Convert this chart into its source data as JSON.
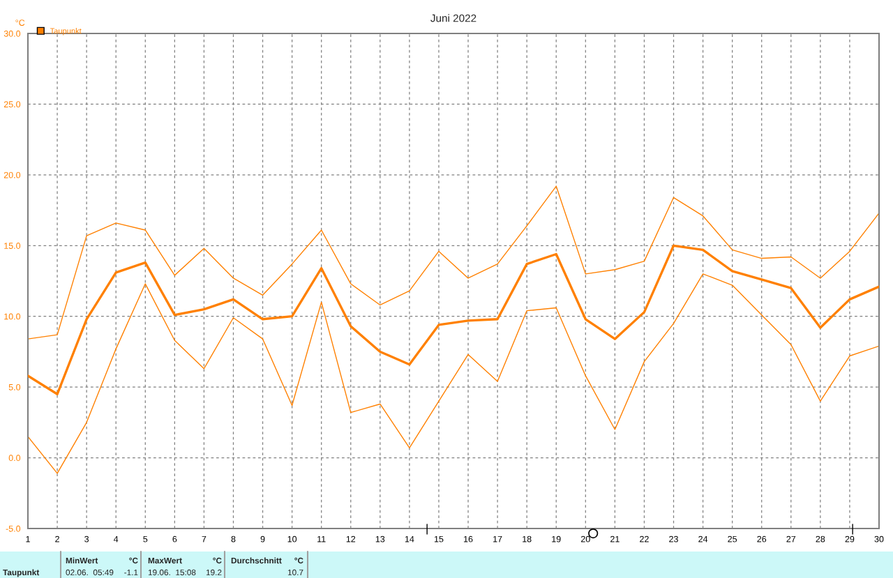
{
  "chart_data": {
    "type": "line",
    "title": "Juni 2022",
    "ylabel": "°C",
    "x": [
      1,
      2,
      3,
      4,
      5,
      6,
      7,
      8,
      9,
      10,
      11,
      12,
      13,
      14,
      15,
      16,
      17,
      18,
      19,
      20,
      21,
      22,
      23,
      24,
      25,
      26,
      27,
      28,
      29,
      30
    ],
    "series": [
      {
        "name": "Taupunkt",
        "color": "#ff8000",
        "values": [
          5.8,
          4.5,
          9.8,
          13.1,
          13.8,
          10.1,
          10.5,
          11.2,
          9.8,
          10.0,
          13.4,
          9.3,
          7.5,
          6.6,
          9.4,
          9.7,
          9.8,
          13.7,
          14.4,
          9.8,
          8.4,
          10.3,
          15.0,
          14.7,
          13.2,
          12.6,
          12.0,
          9.2,
          11.2,
          12.1
        ]
      },
      {
        "color": "#ff8000",
        "values": [
          8.4,
          8.7,
          15.7,
          16.6,
          16.1,
          12.9,
          14.8,
          12.7,
          11.5,
          13.7,
          16.1,
          12.3,
          10.8,
          11.8,
          14.6,
          12.7,
          13.7,
          16.4,
          19.2,
          13.0,
          13.3,
          13.9,
          18.4,
          17.1,
          14.7,
          14.1,
          14.2,
          12.7,
          14.6,
          17.3
        ]
      },
      {
        "color": "#ff8000",
        "values": [
          1.5,
          -1.1,
          2.5,
          7.7,
          12.3,
          8.3,
          6.3,
          9.9,
          8.4,
          3.7,
          11.0,
          3.2,
          3.8,
          0.7,
          4.0,
          7.3,
          5.4,
          10.4,
          10.6,
          5.8,
          2.0,
          6.8,
          9.5,
          13.0,
          12.2,
          10.1,
          8.0,
          4.0,
          7.2,
          7.9
        ]
      }
    ],
    "xlim": [
      1,
      30
    ],
    "xticks": [
      1,
      2,
      3,
      4,
      5,
      6,
      7,
      8,
      9,
      10,
      11,
      12,
      13,
      14,
      15,
      16,
      17,
      18,
      19,
      20,
      21,
      22,
      23,
      24,
      25,
      26,
      27,
      28,
      29,
      30
    ],
    "ylim": [
      -5,
      30
    ],
    "yticks": [
      {
        "value": -5,
        "label": "-5.0"
      },
      {
        "value": 0,
        "label": "0.0"
      },
      {
        "value": 5,
        "label": "5.0"
      },
      {
        "value": 10,
        "label": "10.0"
      },
      {
        "value": 15,
        "label": "15.0"
      },
      {
        "value": 20,
        "label": "20.0"
      },
      {
        "value": 25,
        "label": "25.0"
      },
      {
        "value": 30,
        "label": "30.0"
      }
    ],
    "grid": true,
    "legend": "top left",
    "line_style": "solid",
    "marker": "none",
    "annotations": [
      "Taupunkt",
      "MinWert",
      "°C",
      "02.06.  05:49",
      "-1.1",
      "MaxWert",
      "°C",
      "19.06.  15:08",
      "19.2",
      "Durchschnitt",
      "°C",
      "10.7"
    ]
  }
}
